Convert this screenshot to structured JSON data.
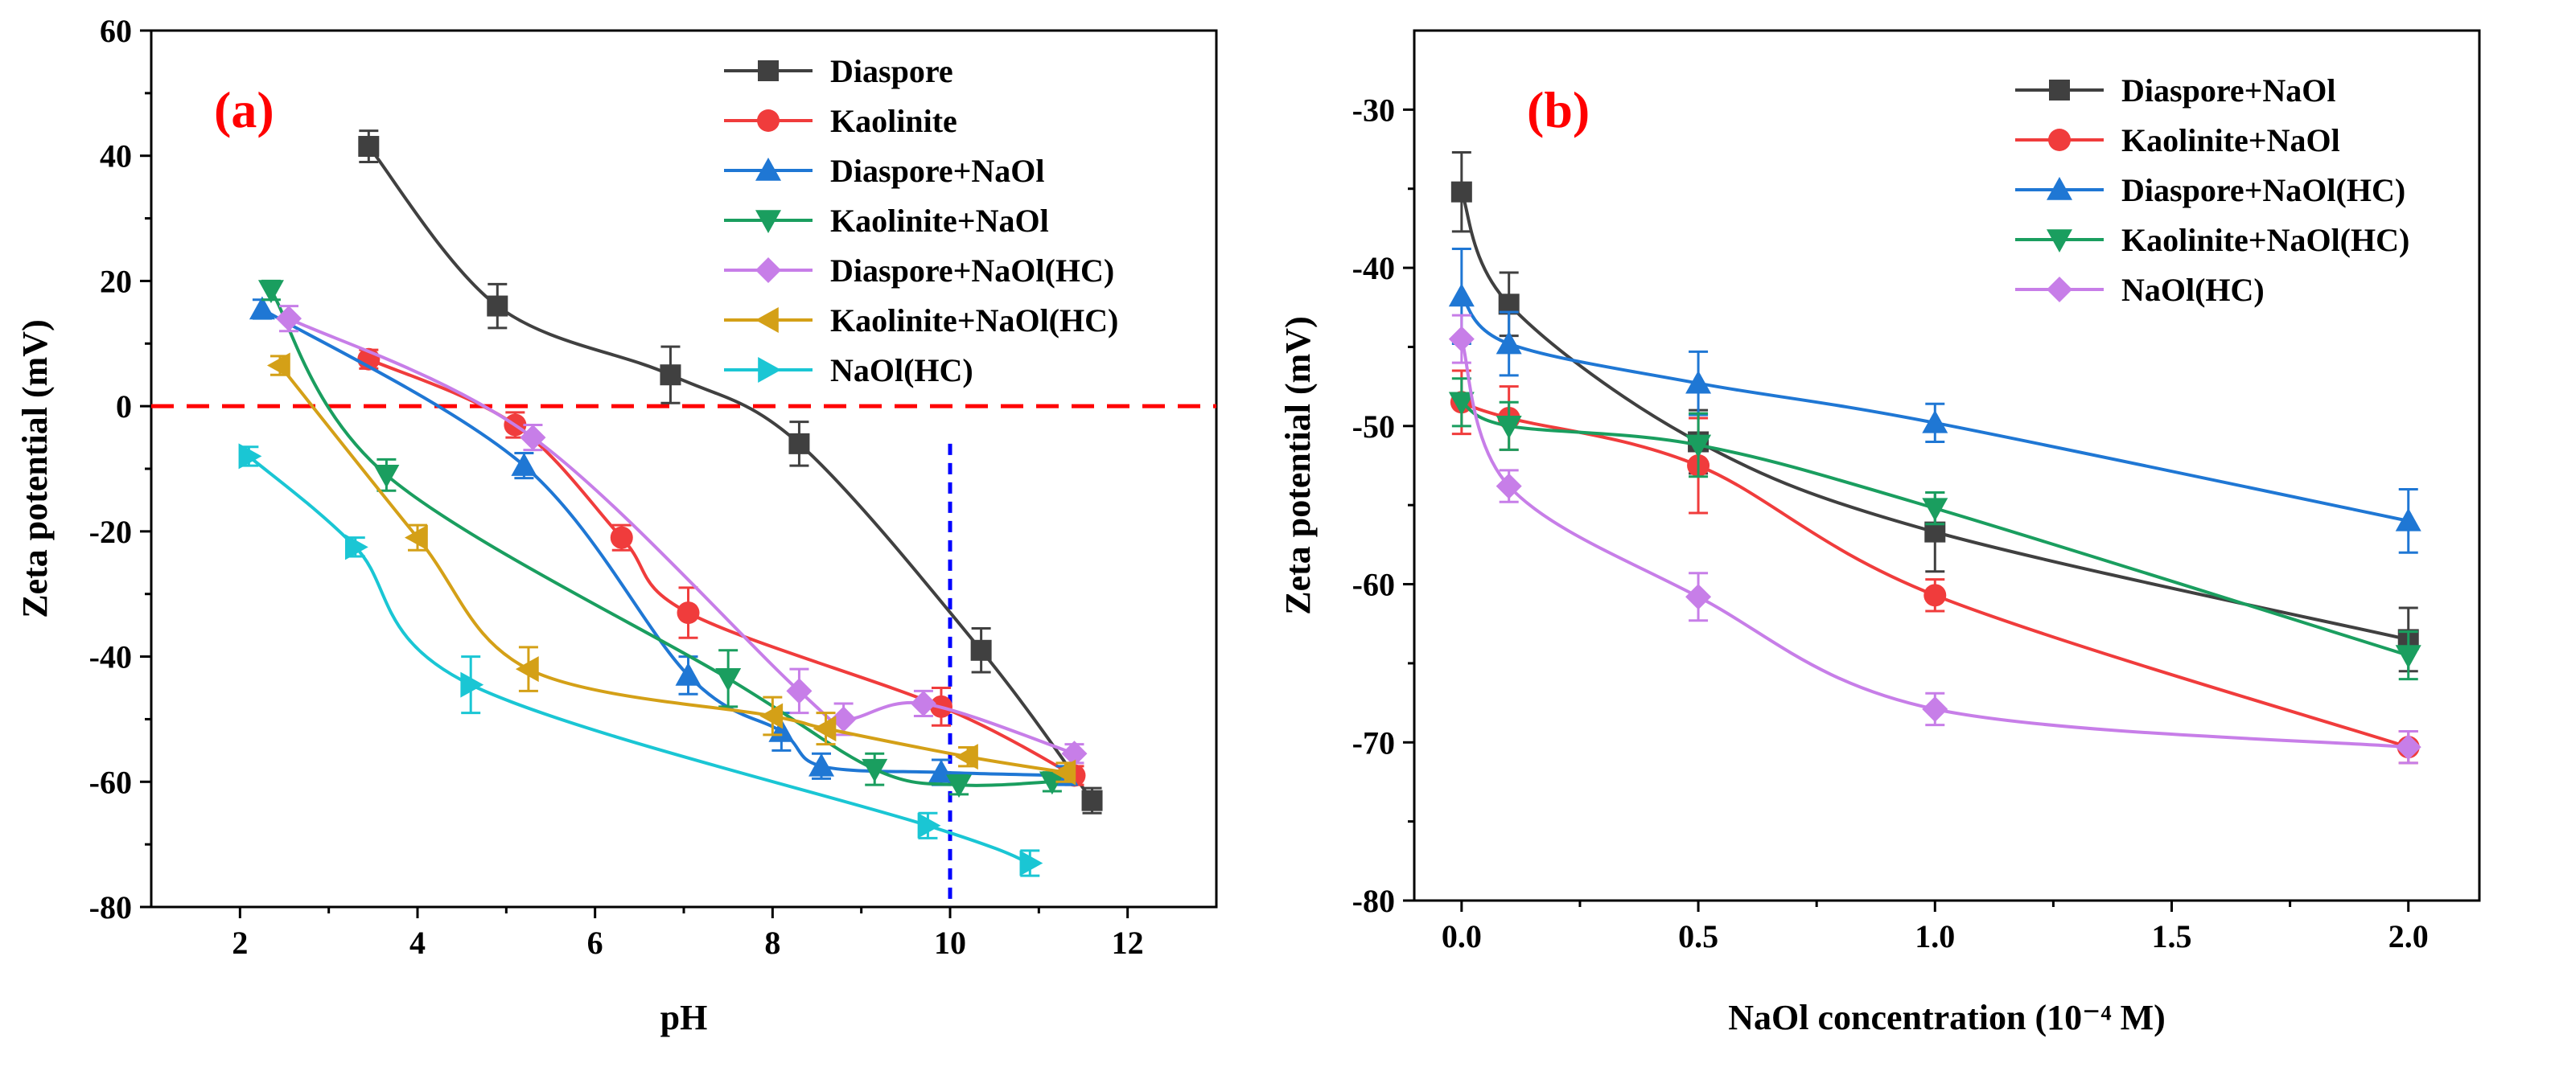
{
  "chart_data": [
    {
      "type": "line",
      "panel_label": "(a)",
      "title": "",
      "xlabel": "pH",
      "ylabel": "Zeta potential (mV)",
      "xlim": [
        1,
        13
      ],
      "ylim": [
        -80,
        60
      ],
      "xticks": [
        2,
        4,
        6,
        8,
        10,
        12
      ],
      "yticks": [
        -80,
        -60,
        -40,
        -20,
        0,
        20,
        40,
        60
      ],
      "xtick_labels": [
        "2",
        "4",
        "6",
        "8",
        "10",
        "12"
      ],
      "ytick_labels": [
        "-80",
        "-60",
        "-40",
        "-20",
        "0",
        "20",
        "40",
        "60"
      ],
      "grid": false,
      "legend_position": "top-right",
      "reference_lines": [
        {
          "orientation": "horizontal",
          "value": 0,
          "color": "#ff0000",
          "style": "dashed"
        },
        {
          "orientation": "vertical",
          "value": 10,
          "y_top": -6,
          "color": "#0000ff",
          "style": "dashed"
        }
      ],
      "series": [
        {
          "name": "Diaspore",
          "color": "#404040",
          "marker": "square",
          "x": [
            3.45,
            4.9,
            6.85,
            8.3,
            10.35,
            11.6
          ],
          "y": [
            41.5,
            16,
            5,
            -6,
            -39,
            -63
          ],
          "err": [
            2.5,
            3.5,
            4.5,
            3.5,
            3.5,
            2
          ]
        },
        {
          "name": "Kaolinite",
          "color": "#f03c3c",
          "marker": "circle",
          "x": [
            3.45,
            5.1,
            6.3,
            7.05,
            9.9,
            11.4
          ],
          "y": [
            7.5,
            -3,
            -21,
            -33,
            -48,
            -59
          ],
          "err": [
            1.5,
            2,
            2,
            4,
            3,
            1.5
          ]
        },
        {
          "name": "Diaspore+NaOl",
          "color": "#1f77d4",
          "marker": "triangle-up",
          "x": [
            2.25,
            5.2,
            7.05,
            8.1,
            8.55,
            9.9,
            11.3
          ],
          "y": [
            15.5,
            -9.5,
            -43,
            -52,
            -57.5,
            -58.5,
            -59
          ],
          "err": [
            1.5,
            2,
            3,
            3,
            2,
            2,
            1.5
          ]
        },
        {
          "name": "Kaolinite+NaOl",
          "color": "#1a9e5f",
          "marker": "triangle-down",
          "x": [
            2.35,
            3.65,
            7.5,
            9.15,
            10.1,
            11.15
          ],
          "y": [
            18.5,
            -11,
            -43.5,
            -58,
            -60.5,
            -60
          ],
          "err": [
            1.5,
            2.5,
            4.5,
            2.5,
            1.5,
            1.5
          ]
        },
        {
          "name": "Diaspore+NaOl(HC)",
          "color": "#c77ee8",
          "marker": "diamond",
          "x": [
            2.55,
            5.3,
            8.3,
            8.8,
            9.7,
            11.4
          ],
          "y": [
            14,
            -5,
            -45.5,
            -50,
            -47.5,
            -55.5
          ],
          "err": [
            2,
            2,
            3.5,
            2.5,
            2,
            1.5
          ]
        },
        {
          "name": "Kaolinite+NaOl(HC)",
          "color": "#d4a017",
          "marker": "triangle-left",
          "x": [
            2.45,
            4.0,
            5.25,
            8.0,
            8.6,
            10.2,
            11.3
          ],
          "y": [
            6.5,
            -21,
            -42,
            -49.5,
            -51.5,
            -56,
            -58.5
          ],
          "err": [
            1.5,
            2,
            3.5,
            3,
            2.5,
            1.5,
            1.5
          ]
        },
        {
          "name": "NaOl(HC)",
          "color": "#1ac6d4",
          "marker": "triangle-right",
          "x": [
            2.1,
            3.3,
            4.6,
            9.75,
            10.9
          ],
          "y": [
            -8,
            -22.5,
            -44.5,
            -67,
            -73
          ],
          "err": [
            1.5,
            1.5,
            4.5,
            2,
            2
          ]
        }
      ]
    },
    {
      "type": "line",
      "panel_label": "(b)",
      "title": "",
      "xlabel": "NaOl concentration (10⁻⁴ M)",
      "ylabel": "Zeta potential (mV)",
      "xlim": [
        -0.1,
        2.15
      ],
      "ylim": [
        -80,
        -25
      ],
      "xticks": [
        0,
        0.5,
        1,
        1.5,
        2
      ],
      "yticks": [
        -80,
        -70,
        -60,
        -50,
        -40,
        -30
      ],
      "xtick_labels": [
        "0.0",
        "0.5",
        "1.0",
        "1.5",
        "2.0"
      ],
      "ytick_labels": [
        "-80",
        "-70",
        "-60",
        "-50",
        "-40",
        "-30"
      ],
      "grid": false,
      "legend_position": "top-right",
      "series": [
        {
          "name": "Diaspore+NaOl",
          "color": "#404040",
          "marker": "square",
          "x": [
            0,
            0.1,
            0.5,
            1.0,
            2.0
          ],
          "y": [
            -35.2,
            -42.3,
            -51,
            -56.7,
            -63.5
          ],
          "err": [
            2.5,
            2,
            2,
            2.5,
            2
          ]
        },
        {
          "name": "Kaolinite+NaOl",
          "color": "#f03c3c",
          "marker": "circle",
          "x": [
            0,
            0.1,
            0.5,
            1.0,
            2.0
          ],
          "y": [
            -48.5,
            -49.5,
            -52.5,
            -60.7,
            -70.3
          ],
          "err": [
            2,
            2,
            3,
            1,
            1
          ]
        },
        {
          "name": "Diaspore+NaOl(HC)",
          "color": "#1f77d4",
          "marker": "triangle-up",
          "x": [
            0,
            0.1,
            0.5,
            1.0,
            2.0
          ],
          "y": [
            -41.8,
            -44.8,
            -47.3,
            -49.8,
            -56
          ],
          "err": [
            3,
            2,
            2,
            1.2,
            2
          ]
        },
        {
          "name": "Kaolinite+NaOl(HC)",
          "color": "#1a9e5f",
          "marker": "triangle-down",
          "x": [
            0,
            0.1,
            0.5,
            1.0,
            2.0
          ],
          "y": [
            -48.5,
            -50,
            -51.2,
            -55.2,
            -64.5
          ],
          "err": [
            1.5,
            1.5,
            2,
            1,
            1.5
          ]
        },
        {
          "name": "NaOl(HC)",
          "color": "#c77ee8",
          "marker": "diamond",
          "x": [
            0,
            0.1,
            0.5,
            1.0,
            2.0
          ],
          "y": [
            -44.5,
            -53.8,
            -60.8,
            -67.9,
            -70.3
          ],
          "err": [
            1.5,
            1,
            1.5,
            1,
            1
          ]
        }
      ]
    }
  ]
}
